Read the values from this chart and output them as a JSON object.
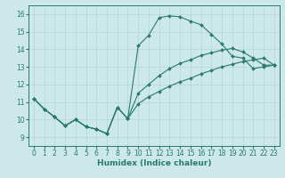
{
  "xlabel": "Humidex (Indice chaleur)",
  "background_color": "#cce8e8",
  "grid_color": "#b8d8d8",
  "line_color": "#2a7a6a",
  "xlim": [
    -0.5,
    23.5
  ],
  "ylim": [
    8.5,
    16.5
  ],
  "xticks": [
    0,
    1,
    2,
    3,
    4,
    5,
    6,
    7,
    8,
    9,
    10,
    11,
    12,
    13,
    14,
    15,
    16,
    17,
    18,
    19,
    20,
    21,
    22,
    23
  ],
  "yticks": [
    9,
    10,
    11,
    12,
    13,
    14,
    15,
    16
  ],
  "curve_top": {
    "x": [
      0,
      1,
      2,
      3,
      4,
      5,
      6,
      7,
      8,
      9,
      10,
      11,
      12,
      13,
      14,
      15,
      16,
      17,
      18,
      19,
      20,
      21,
      22,
      23
    ],
    "y": [
      11.2,
      10.6,
      10.15,
      9.65,
      10.0,
      9.6,
      9.45,
      9.2,
      10.7,
      10.05,
      14.2,
      14.8,
      15.8,
      15.9,
      15.85,
      15.6,
      15.4,
      14.85,
      14.3,
      13.6,
      13.5,
      12.9,
      13.0,
      13.1
    ]
  },
  "curve_mid": {
    "x": [
      0,
      1,
      2,
      3,
      4,
      5,
      6,
      7,
      8,
      9,
      10,
      11,
      12,
      13,
      14,
      15,
      16,
      17,
      18,
      19,
      20,
      21,
      22,
      23
    ],
    "y": [
      11.2,
      10.6,
      10.15,
      9.65,
      10.0,
      9.6,
      9.45,
      9.2,
      10.7,
      10.05,
      11.5,
      12.0,
      12.5,
      12.9,
      13.2,
      13.4,
      13.65,
      13.8,
      13.95,
      14.05,
      13.85,
      13.5,
      13.1,
      13.1
    ]
  },
  "curve_bot": {
    "x": [
      0,
      1,
      2,
      3,
      4,
      5,
      6,
      7,
      8,
      9,
      10,
      11,
      12,
      13,
      14,
      15,
      16,
      17,
      18,
      19,
      20,
      21,
      22,
      23
    ],
    "y": [
      11.2,
      10.6,
      10.15,
      9.65,
      10.0,
      9.6,
      9.45,
      9.2,
      10.7,
      10.05,
      10.9,
      11.3,
      11.6,
      11.9,
      12.15,
      12.35,
      12.6,
      12.8,
      13.0,
      13.15,
      13.3,
      13.4,
      13.5,
      13.1
    ]
  }
}
